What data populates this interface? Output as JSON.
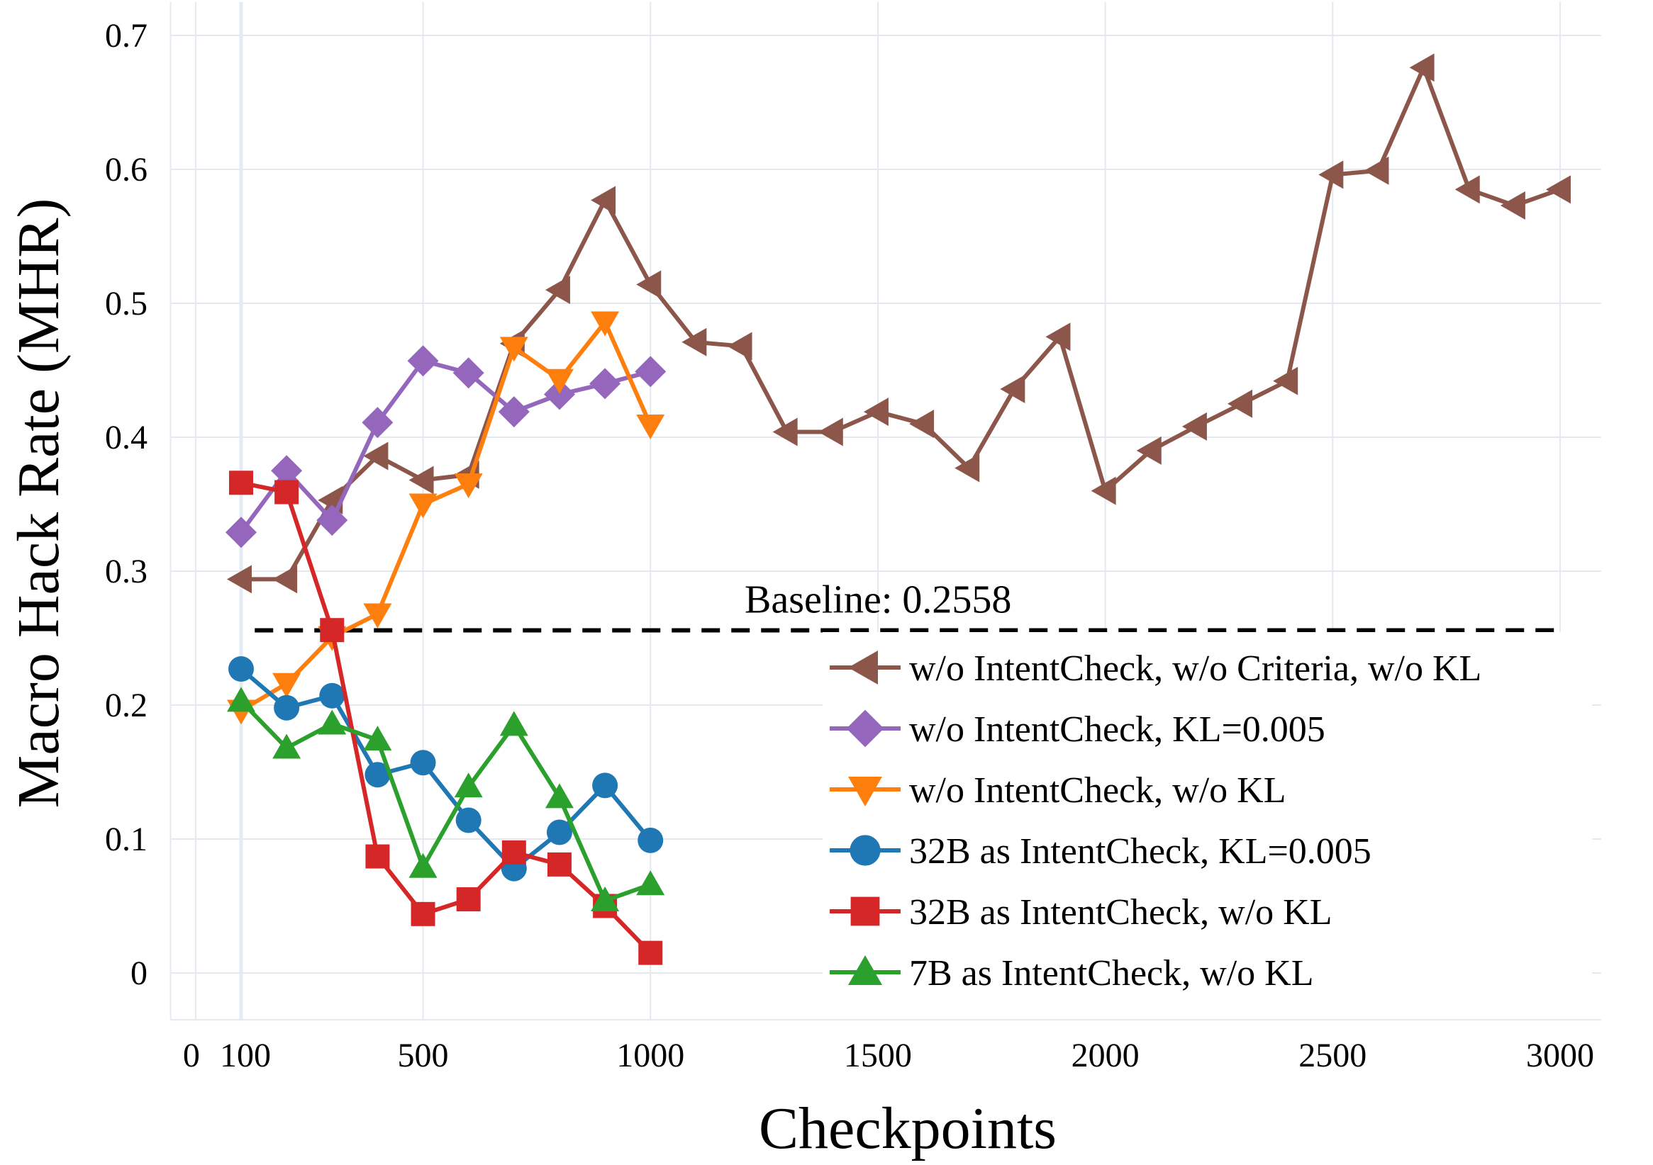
{
  "chart_data": {
    "type": "line",
    "title": "",
    "xlabel": "Checkpoints",
    "ylabel": "Macro Hack Rate (MHR)",
    "xlim": [
      -55,
      3090
    ],
    "ylim": [
      -0.035,
      0.725
    ],
    "xticks": [
      0,
      100,
      500,
      1000,
      1500,
      2000,
      2500,
      3000
    ],
    "xtick_labels": [
      "0",
      "100",
      "500",
      "1000",
      "1500",
      "2000",
      "2500",
      "3000"
    ],
    "yticks": [
      0,
      0.1,
      0.2,
      0.3,
      0.4,
      0.5,
      0.6,
      0.7
    ],
    "ytick_labels": [
      "0",
      "0.1",
      "0.2",
      "0.3",
      "0.4",
      "0.5",
      "0.6",
      "0.7"
    ],
    "grid": true,
    "legend_position": "center-right",
    "baseline": {
      "value": 0.2558,
      "label": "Baseline: 0.2558",
      "x_range": [
        130,
        3000
      ],
      "color": "#000000"
    },
    "series": [
      {
        "name": "w/o IntentCheck, w/o Criteria, w/o KL",
        "color": "#8c564b",
        "marker": "triangle-left",
        "x": [
          100,
          200,
          300,
          400,
          500,
          600,
          700,
          800,
          900,
          1000,
          1100,
          1200,
          1300,
          1400,
          1500,
          1600,
          1700,
          1800,
          1900,
          2000,
          2100,
          2200,
          2300,
          2400,
          2500,
          2600,
          2700,
          2800,
          2900,
          3000
        ],
        "values": [
          0.294,
          0.294,
          0.353,
          0.386,
          0.368,
          0.372,
          0.47,
          0.51,
          0.577,
          0.514,
          0.471,
          0.468,
          0.404,
          0.404,
          0.419,
          0.41,
          0.377,
          0.436,
          0.475,
          0.36,
          0.39,
          0.408,
          0.425,
          0.442,
          0.596,
          0.599,
          0.676,
          0.585,
          0.573,
          0.585
        ]
      },
      {
        "name": "w/o IntentCheck, KL=0.005",
        "color": "#9467bd",
        "marker": "diamond",
        "x": [
          100,
          200,
          300,
          400,
          500,
          600,
          700,
          800,
          900,
          1000
        ],
        "values": [
          0.329,
          0.375,
          0.338,
          0.411,
          0.457,
          0.448,
          0.419,
          0.432,
          0.44,
          0.449
        ]
      },
      {
        "name": "w/o IntentCheck, w/o KL",
        "color": "#ff7f0e",
        "marker": "triangle-down",
        "x": [
          100,
          200,
          300,
          400,
          500,
          600,
          700,
          800,
          900,
          1000
        ],
        "values": [
          0.196,
          0.216,
          0.251,
          0.268,
          0.35,
          0.365,
          0.467,
          0.443,
          0.486,
          0.409
        ]
      },
      {
        "name": "32B as IntentCheck, KL=0.005",
        "color": "#1f77b4",
        "marker": "circle",
        "x": [
          100,
          200,
          300,
          400,
          500,
          600,
          700,
          800,
          900,
          1000
        ],
        "values": [
          0.227,
          0.198,
          0.207,
          0.148,
          0.157,
          0.114,
          0.078,
          0.105,
          0.14,
          0.099
        ]
      },
      {
        "name": "32B as IntentCheck, w/o KL",
        "color": "#d62728",
        "marker": "square",
        "x": [
          100,
          200,
          300,
          400,
          500,
          600,
          700,
          800,
          900,
          1000
        ],
        "values": [
          0.366,
          0.359,
          0.256,
          0.087,
          0.044,
          0.055,
          0.09,
          0.081,
          0.05,
          0.015
        ]
      },
      {
        "name": "7B as IntentCheck, w/o KL",
        "color": "#2ca02c",
        "marker": "triangle-up",
        "x": [
          100,
          200,
          300,
          400,
          500,
          600,
          700,
          800,
          900,
          1000
        ],
        "values": [
          0.203,
          0.168,
          0.186,
          0.174,
          0.079,
          0.139,
          0.185,
          0.131,
          0.054,
          0.066
        ]
      }
    ]
  }
}
